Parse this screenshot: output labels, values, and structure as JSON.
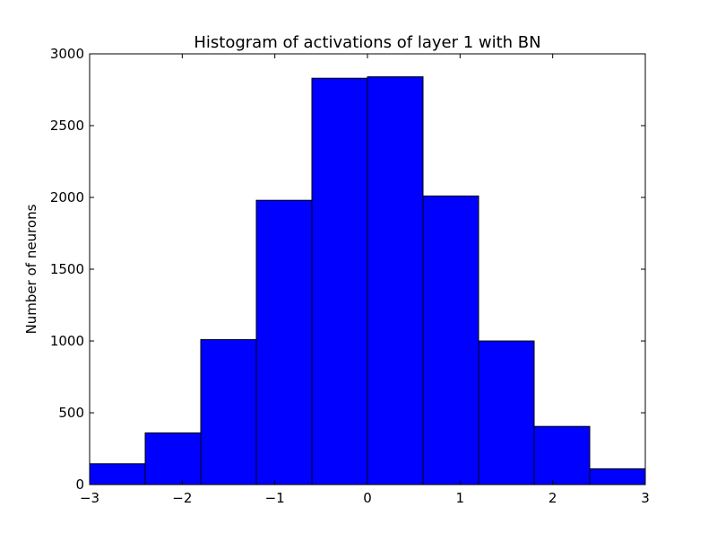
{
  "chart_data": {
    "type": "bar",
    "title": "Histogram of activations of layer 1  with BN",
    "xlabel": "",
    "ylabel": "Number of neurons",
    "bins": [
      {
        "x0": -3.0,
        "x1": -2.4,
        "count": 145
      },
      {
        "x0": -2.4,
        "x1": -1.8,
        "count": 360
      },
      {
        "x0": -1.8,
        "x1": -1.2,
        "count": 1010
      },
      {
        "x0": -1.2,
        "x1": -0.6,
        "count": 1980
      },
      {
        "x0": -0.6,
        "x1": 0.0,
        "count": 2830
      },
      {
        "x0": 0.0,
        "x1": 0.6,
        "count": 2840
      },
      {
        "x0": 0.6,
        "x1": 1.2,
        "count": 2010
      },
      {
        "x0": 1.2,
        "x1": 1.8,
        "count": 1000
      },
      {
        "x0": 1.8,
        "x1": 2.4,
        "count": 405
      },
      {
        "x0": 2.4,
        "x1": 3.0,
        "count": 110
      }
    ],
    "xlim": [
      -3,
      3
    ],
    "ylim": [
      0,
      3000
    ],
    "x_ticks": [
      -3,
      -2,
      -1,
      0,
      1,
      2,
      3
    ],
    "x_tick_labels": [
      "−3",
      "−2",
      "−1",
      "0",
      "1",
      "2",
      "3"
    ],
    "y_ticks": [
      0,
      500,
      1000,
      1500,
      2000,
      2500,
      3000
    ],
    "y_tick_labels": [
      "0",
      "500",
      "1000",
      "1500",
      "2000",
      "2500",
      "3000"
    ],
    "grid": false,
    "legend": "none",
    "colors": {
      "bar_fill": "#0000ff",
      "bar_edge": "#000000",
      "axes": "#000000",
      "background": "#ffffff"
    }
  }
}
